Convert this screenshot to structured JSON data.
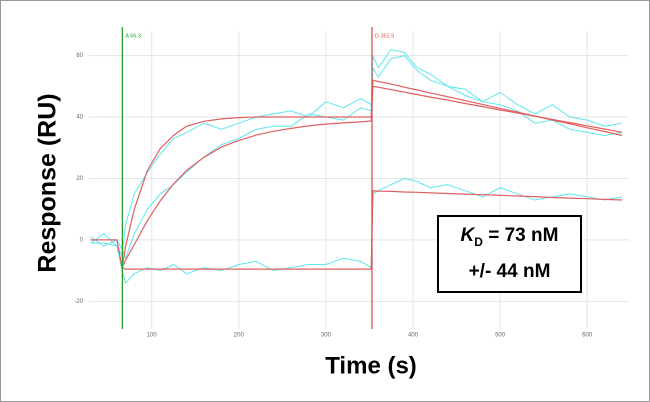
{
  "chart_data": {
    "type": "line",
    "xlabel": "Time (s)",
    "ylabel": "Response (RU)",
    "x": [
      30,
      45,
      60,
      66,
      70,
      80,
      95,
      110,
      125,
      140,
      160,
      180,
      200,
      220,
      240,
      260,
      280,
      300,
      320,
      340,
      352,
      354,
      360,
      375,
      390,
      405,
      420,
      440,
      460,
      480,
      500,
      520,
      540,
      560,
      580,
      600,
      620,
      640
    ],
    "series": [
      {
        "color": "#5ee6ee",
        "values": [
          -1,
          2,
          -2,
          -5,
          5,
          15,
          22,
          28,
          33,
          35,
          38,
          36,
          38,
          40,
          41,
          42,
          40,
          45,
          43,
          46,
          44,
          60,
          56,
          62,
          61,
          56,
          54,
          50,
          49,
          45,
          48,
          44,
          41,
          44,
          40,
          39,
          37,
          38
        ]
      },
      {
        "color": "#5ee6ee",
        "values": [
          1,
          -2,
          0,
          -3,
          -6,
          2,
          10,
          15,
          18,
          22,
          27,
          31,
          33,
          36,
          37,
          37,
          41,
          40,
          39,
          43,
          42,
          56,
          53,
          59,
          60,
          55,
          52,
          50,
          47,
          45,
          44,
          42,
          38,
          39,
          36,
          35,
          34,
          35
        ]
      },
      {
        "color": "#5ee6ee",
        "values": [
          -1,
          -1,
          -2,
          -10,
          -14,
          -11,
          -9,
          -10,
          -8,
          -11,
          -9,
          -10,
          -8,
          -7,
          -10,
          -9,
          -8,
          -8,
          -6,
          -7,
          -9,
          15,
          16,
          18,
          20,
          19,
          17,
          18,
          16,
          14,
          17,
          15,
          13,
          14,
          15,
          14,
          13,
          14
        ]
      },
      {
        "color": "#e06060",
        "values": [
          null,
          null,
          null,
          -9,
          -2,
          10,
          22.6,
          29.8,
          34,
          37,
          38.6,
          39.4,
          39.8,
          40,
          40,
          40,
          40,
          40,
          40,
          40,
          40,
          52,
          51.6,
          50.7,
          49.7,
          48.8,
          47.8,
          46.6,
          45.3,
          44.1,
          42.8,
          41.6,
          40.3,
          39,
          37.8,
          36.5,
          35.3,
          34
        ]
      },
      {
        "color": "#e06060",
        "values": [
          null,
          null,
          null,
          -9,
          -6.6,
          -1.5,
          6.3,
          12.8,
          18.2,
          22.6,
          26.9,
          30.2,
          32.4,
          34.1,
          35.4,
          36.3,
          37.1,
          37.7,
          38.1,
          38.4,
          38.7,
          50,
          49.7,
          48.9,
          48.1,
          47.3,
          46.5,
          45.5,
          44.4,
          43.4,
          42.3,
          41.3,
          40.3,
          39.2,
          38.2,
          37.1,
          36.1,
          35
        ]
      },
      {
        "color": "#e06060",
        "values": [
          0,
          0,
          0,
          -9,
          -9.5,
          -9.5,
          -9.5,
          -9.5,
          -9.5,
          -9.5,
          -9.5,
          -9.5,
          -9.5,
          -9.5,
          -9.5,
          -9.5,
          -9.5,
          -9.5,
          -9.5,
          -9.5,
          -9.5,
          16,
          15.9,
          15.8,
          15.6,
          15.5,
          15.3,
          15.1,
          14.9,
          14.7,
          14.5,
          14.3,
          14.1,
          13.8,
          13.6,
          13.4,
          13.2,
          13
        ]
      }
    ],
    "markers": [
      {
        "x": 66.3,
        "label": "A 66.3",
        "color": "#2a9d2a"
      },
      {
        "x": 352.9,
        "label": "D 352.9",
        "color": "#d9534f"
      }
    ],
    "xlim": [
      28,
      648
    ],
    "xticks": [
      100,
      200,
      300,
      400,
      500,
      600
    ],
    "ylim": [
      -29,
      68
    ],
    "yticks": [
      -20,
      0,
      20,
      40,
      60
    ],
    "grid": true,
    "annotation": {
      "symbol": "K",
      "subscript": "D",
      "text": "= 73 nM",
      "error": "+/- 44 nM"
    }
  }
}
